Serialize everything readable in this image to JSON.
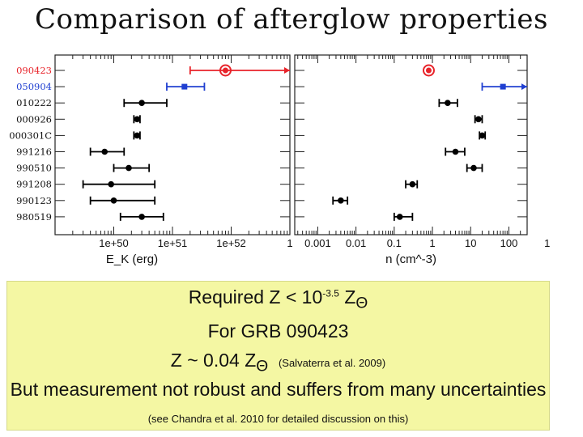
{
  "slide": {
    "title": "Comparison of afterglow properties",
    "box": {
      "line1": {
        "pre": "Required Z < 10",
        "exp": "-3.5",
        "post": " Z",
        "sub": "Θ"
      },
      "line2": "For GRB 090423",
      "line3": {
        "pre": "Z ~ 0.04 Z",
        "sub": "Θ",
        "ref": "(Salvaterra et al. 2009)"
      },
      "line4": "But measurement not robust and suffers from many uncertainties",
      "line5": "(see Chandra et al. 2010 for detailed discussion on this)"
    }
  },
  "chart_data": [
    {
      "type": "scatter",
      "title": "",
      "xlabel": "E_K (erg)",
      "xscale": "log",
      "xlim": [
        1e+49,
        1e+53
      ],
      "xticks": [
        "1e+50",
        "1e+51",
        "1e+52",
        "1"
      ],
      "categories": [
        "090423",
        "050904",
        "010222",
        "000926",
        "000301C",
        "991216",
        "990510",
        "991208",
        "990123",
        "980519"
      ],
      "category_colors": {
        "090423": "#e8232a",
        "050904": "#1f3fd1"
      },
      "points": [
        {
          "name": "090423",
          "value": 8e+51,
          "err_low": 2e+51,
          "arrow": "right",
          "color": "#e8232a",
          "marker": "target"
        },
        {
          "name": "050904",
          "value": 1.6e+51,
          "err_low": 8e+50,
          "err_high": 3.5e+51,
          "color": "#1f3fd1",
          "marker": "square"
        },
        {
          "name": "010222",
          "value": 3e+50,
          "err_low": 1.5e+50,
          "err_high": 8e+50,
          "color": "#000000",
          "marker": "circle"
        },
        {
          "name": "000926",
          "value": 2.5e+50,
          "err_low": 2.2e+50,
          "err_high": 2.8e+50,
          "color": "#000000",
          "marker": "circle"
        },
        {
          "name": "000301C",
          "value": 2.5e+50,
          "err_low": 2.2e+50,
          "err_high": 2.8e+50,
          "color": "#000000",
          "marker": "circle"
        },
        {
          "name": "991216",
          "value": 7e+49,
          "err_low": 4e+49,
          "err_high": 1.5e+50,
          "color": "#000000",
          "marker": "circle"
        },
        {
          "name": "990510",
          "value": 1.8e+50,
          "err_low": 1e+50,
          "err_high": 4e+50,
          "color": "#000000",
          "marker": "circle"
        },
        {
          "name": "991208",
          "value": 9e+49,
          "err_low": 3e+49,
          "err_high": 5e+50,
          "color": "#000000",
          "marker": "circle"
        },
        {
          "name": "990123",
          "value": 1e+50,
          "err_low": 4e+49,
          "err_high": 5e+50,
          "color": "#000000",
          "marker": "circle"
        },
        {
          "name": "980519",
          "value": 3e+50,
          "err_low": 1.3e+50,
          "err_high": 7e+50,
          "color": "#000000",
          "marker": "circle"
        }
      ]
    },
    {
      "type": "scatter",
      "title": "",
      "xlabel": "n (cm^-3)",
      "xscale": "log",
      "xlim": [
        0.00025,
        300
      ],
      "xticks": [
        "0.001",
        "0.01",
        "0.1",
        "1",
        "10",
        "100",
        "1"
      ],
      "categories": [
        "090423",
        "050904",
        "010222",
        "000926",
        "000301C",
        "991216",
        "990510",
        "991208",
        "990123",
        "980519"
      ],
      "points": [
        {
          "name": "090423",
          "value": 0.8,
          "color": "#e8232a",
          "marker": "target"
        },
        {
          "name": "050904",
          "value": 70,
          "err_low": 20,
          "arrow": "right",
          "color": "#1f3fd1",
          "marker": "square"
        },
        {
          "name": "010222",
          "value": 2.5,
          "err_low": 1.5,
          "err_high": 4.5,
          "color": "#000000",
          "marker": "circle"
        },
        {
          "name": "000926",
          "value": 16,
          "err_low": 13,
          "err_high": 20,
          "color": "#000000",
          "marker": "circle"
        },
        {
          "name": "000301C",
          "value": 20,
          "err_low": 17,
          "err_high": 24,
          "color": "#000000",
          "marker": "circle"
        },
        {
          "name": "991216",
          "value": 4,
          "err_low": 2.2,
          "err_high": 7,
          "color": "#000000",
          "marker": "circle"
        },
        {
          "name": "990510",
          "value": 12,
          "err_low": 8,
          "err_high": 20,
          "color": "#000000",
          "marker": "circle"
        },
        {
          "name": "991208",
          "value": 0.3,
          "err_low": 0.2,
          "err_high": 0.4,
          "color": "#000000",
          "marker": "circle"
        },
        {
          "name": "990123",
          "value": 0.004,
          "err_low": 0.0025,
          "err_high": 0.006,
          "color": "#000000",
          "marker": "circle"
        },
        {
          "name": "980519",
          "value": 0.14,
          "err_low": 0.1,
          "err_high": 0.3,
          "color": "#000000",
          "marker": "circle"
        }
      ]
    }
  ]
}
